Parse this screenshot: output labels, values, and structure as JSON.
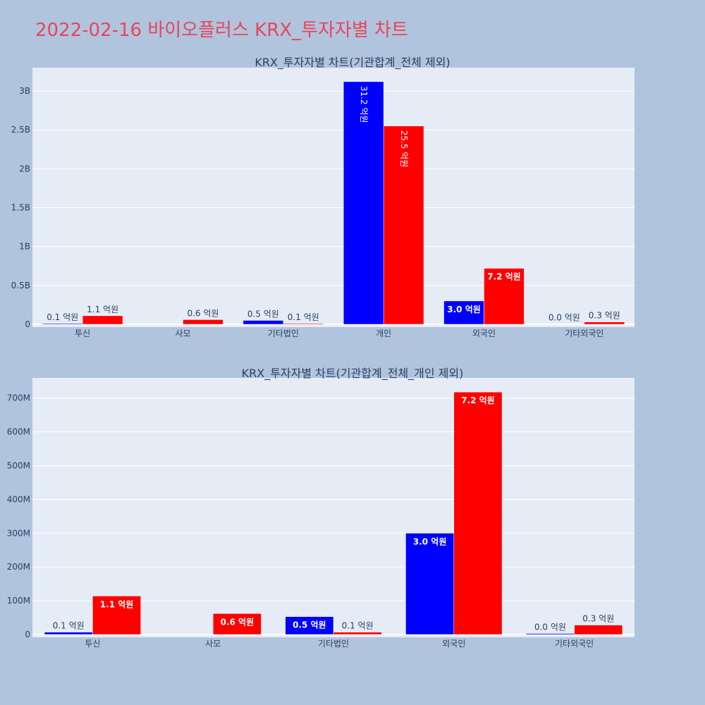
{
  "page": {
    "title": "2022-02-16 바이오플러스 KRX_투자자별 차트"
  },
  "colors": {
    "background": "#b0c4de",
    "plot_bg": "#e5ecf6",
    "title": "#e8455a",
    "series_a": "#0000ff",
    "series_b": "#ff0000"
  },
  "chart_data": [
    {
      "type": "bar",
      "title": "KRX_투자자별 차트(기관합계_전체 제외)",
      "categories": [
        "투신",
        "사모",
        "기타법인",
        "개인",
        "외국인",
        "기타외국인"
      ],
      "ylim": [
        0,
        3300000000
      ],
      "yticks": [
        0,
        500000000,
        1000000000,
        1500000000,
        2000000000,
        2500000000,
        3000000000
      ],
      "ytick_labels": [
        "0",
        "0.5B",
        "1B",
        "1.5B",
        "2B",
        "2.5B",
        "3B"
      ],
      "grid": true,
      "series": [
        {
          "color": "#0000ff",
          "values": [
            10000000,
            0,
            50000000,
            3120000000,
            300000000,
            3000000
          ],
          "labels": [
            "0.1 억원",
            "",
            "0.5 억원",
            "31.2 억원",
            "3.0 억원",
            "0.0 억원"
          ]
        },
        {
          "color": "#ff0000",
          "values": [
            110000000,
            60000000,
            10000000,
            2550000000,
            720000000,
            30000000
          ],
          "labels": [
            "1.1 억원",
            "0.6 억원",
            "0.1 억원",
            "25.5 억원",
            "7.2 억원",
            "0.3 억원"
          ]
        }
      ]
    },
    {
      "type": "bar",
      "title": "KRX_투자자별 차트(기관합계_전체_개인 제외)",
      "categories": [
        "투신",
        "사모",
        "기타법인",
        "외국인",
        "기타외국인"
      ],
      "ylim": [
        0,
        760000000
      ],
      "yticks": [
        0,
        100000000,
        200000000,
        300000000,
        400000000,
        500000000,
        600000000,
        700000000
      ],
      "ytick_labels": [
        "0",
        "100M",
        "200M",
        "300M",
        "400M",
        "500M",
        "600M",
        "700M"
      ],
      "grid": true,
      "series": [
        {
          "color": "#0000ff",
          "values": [
            7000000,
            0,
            53000000,
            300000000,
            3000000
          ],
          "labels": [
            "0.1 억원",
            "",
            "0.5 억원",
            "3.0 억원",
            "0.0 억원"
          ]
        },
        {
          "color": "#ff0000",
          "values": [
            114000000,
            62000000,
            7000000,
            718000000,
            28000000
          ],
          "labels": [
            "1.1 억원",
            "0.6 억원",
            "0.1 억원",
            "7.2 억원",
            "0.3 억원"
          ]
        }
      ]
    }
  ]
}
